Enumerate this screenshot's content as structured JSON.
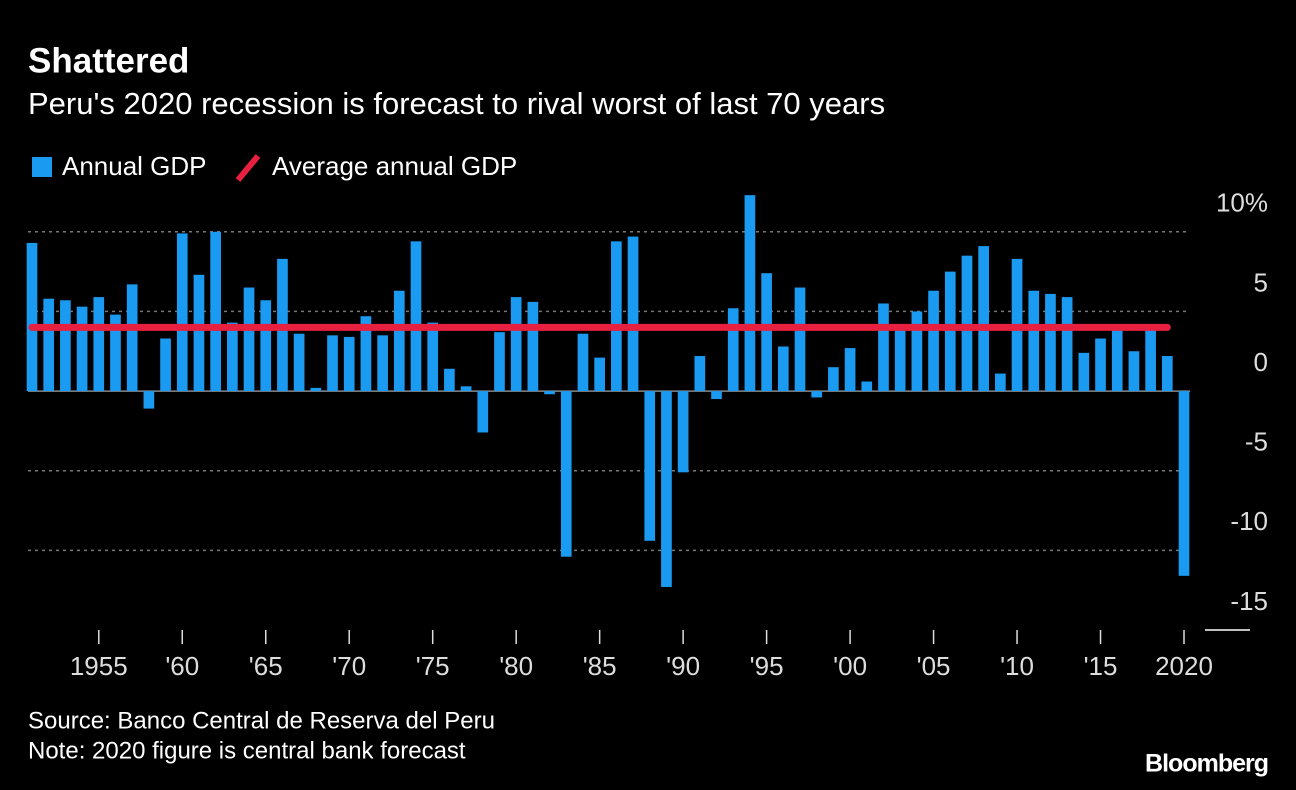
{
  "chart_data": {
    "type": "bar",
    "title": "Shattered",
    "subtitle": "Peru's 2020 recession is forecast to rival worst of last 70 years",
    "x": [
      1951,
      1952,
      1953,
      1954,
      1955,
      1956,
      1957,
      1958,
      1959,
      1960,
      1961,
      1962,
      1963,
      1964,
      1965,
      1966,
      1967,
      1968,
      1969,
      1970,
      1971,
      1972,
      1973,
      1974,
      1975,
      1976,
      1977,
      1978,
      1979,
      1980,
      1981,
      1982,
      1983,
      1984,
      1985,
      1986,
      1987,
      1988,
      1989,
      1990,
      1991,
      1992,
      1993,
      1994,
      1995,
      1996,
      1997,
      1998,
      1999,
      2000,
      2001,
      2002,
      2003,
      2004,
      2005,
      2006,
      2007,
      2008,
      2009,
      2010,
      2011,
      2012,
      2013,
      2014,
      2015,
      2016,
      2017,
      2018,
      2019,
      2020
    ],
    "series": [
      {
        "name": "Annual GDP",
        "color": "#1a9af0",
        "values": [
          9.3,
          5.8,
          5.7,
          5.3,
          5.9,
          4.8,
          6.7,
          -1.1,
          3.3,
          9.9,
          7.3,
          10.0,
          4.3,
          6.5,
          5.7,
          8.3,
          3.6,
          0.2,
          3.5,
          3.4,
          4.7,
          3.5,
          6.3,
          9.4,
          4.3,
          1.4,
          0.3,
          -2.6,
          3.7,
          5.9,
          5.6,
          -0.2,
          -10.4,
          3.6,
          2.1,
          9.4,
          9.7,
          -9.4,
          -12.3,
          -5.1,
          2.2,
          -0.5,
          5.2,
          12.3,
          7.4,
          2.8,
          6.5,
          -0.4,
          1.5,
          2.7,
          0.6,
          5.5,
          4.2,
          5.0,
          6.3,
          7.5,
          8.5,
          9.1,
          1.1,
          8.3,
          6.3,
          6.1,
          5.9,
          2.4,
          3.3,
          4.0,
          2.5,
          4.0,
          2.2,
          -11.6
        ]
      }
    ],
    "average": {
      "name": "Average annual GDP",
      "color": "#e8203f",
      "value": 4.0,
      "x": [
        1951,
        2019
      ]
    },
    "xlim": [
      1950.5,
      2020.5
    ],
    "xticks": [
      {
        "value": 1955,
        "label": "1955"
      },
      {
        "value": 1960,
        "label": "'60"
      },
      {
        "value": 1965,
        "label": "'65"
      },
      {
        "value": 1970,
        "label": "'70"
      },
      {
        "value": 1975,
        "label": "'75"
      },
      {
        "value": 1980,
        "label": "'80"
      },
      {
        "value": 1985,
        "label": "'85"
      },
      {
        "value": 1990,
        "label": "'90"
      },
      {
        "value": 1995,
        "label": "'95"
      },
      {
        "value": 2000,
        "label": "'00"
      },
      {
        "value": 2005,
        "label": "'05"
      },
      {
        "value": 2010,
        "label": "'10"
      },
      {
        "value": 2015,
        "label": "'15"
      },
      {
        "value": 2020,
        "label": "2020"
      }
    ],
    "ylim": [
      -15,
      13
    ],
    "yticks": [
      {
        "value": 10,
        "label": "10%"
      },
      5,
      0,
      -5,
      -10,
      -15
    ],
    "grid": true,
    "source": "Source: Banco Central de Reserva del Peru",
    "note": "Note: 2020 figure is central bank forecast",
    "brand": "Bloomberg"
  }
}
